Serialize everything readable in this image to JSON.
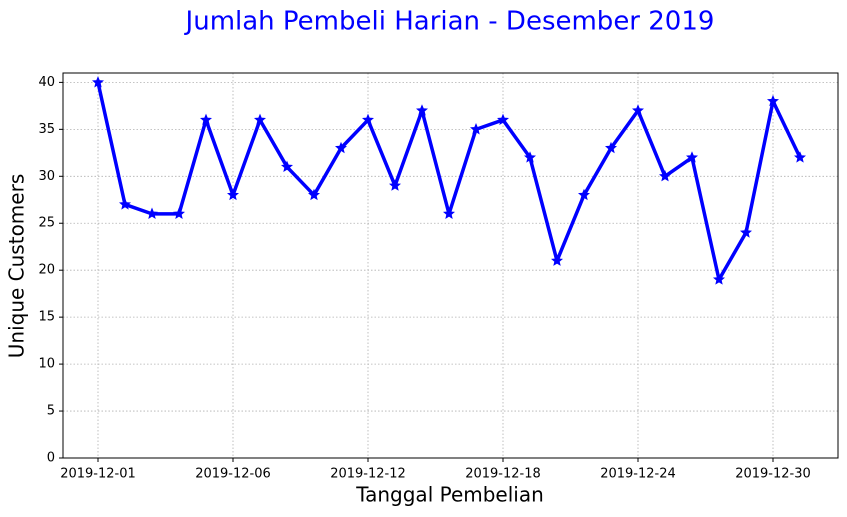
{
  "chart_data": {
    "type": "line",
    "title": "Jumlah Pembeli Harian - Desember 2019",
    "xlabel": "Tanggal Pembelian",
    "ylabel": "Unique Customers",
    "categories": [
      "2019-12-01",
      null,
      null,
      null,
      null,
      "2019-12-06",
      null,
      null,
      null,
      null,
      "2019-12-12",
      null,
      null,
      null,
      null,
      "2019-12-18",
      null,
      null,
      null,
      null,
      "2019-12-24",
      null,
      null,
      null,
      null,
      "2019-12-30",
      null
    ],
    "series": [
      {
        "name": "Unique Customers",
        "color": "#0000ff",
        "values": [
          40,
          27,
          26,
          26,
          36,
          28,
          36,
          31,
          28,
          33,
          36,
          29,
          37,
          26,
          35,
          36,
          32,
          21,
          28,
          33,
          37,
          30,
          32,
          19,
          24,
          38,
          32
        ]
      }
    ],
    "ylim": [
      0,
      41
    ],
    "yticks": [
      0,
      5,
      10,
      15,
      20,
      25,
      30,
      35,
      40
    ],
    "grid": true
  }
}
